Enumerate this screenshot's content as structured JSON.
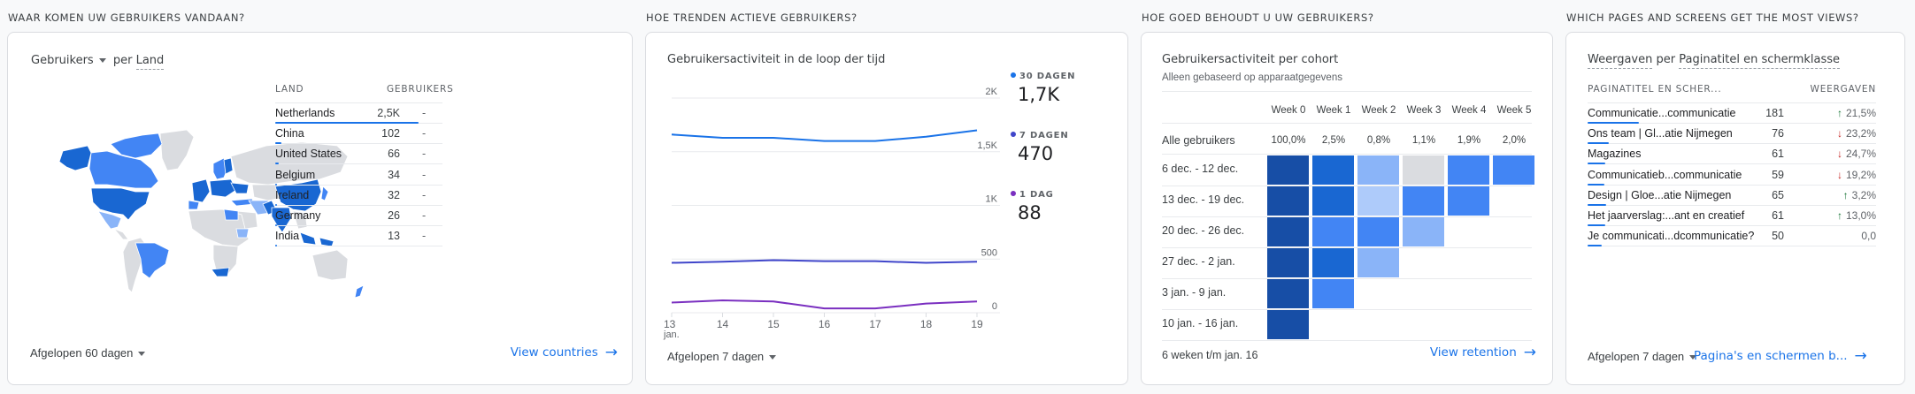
{
  "sections": [
    {
      "title": "WAAR KOMEN UW GEBRUIKERS VANDAAN?"
    },
    {
      "title": "HOE TRENDEN ACTIEVE GEBRUIKERS?"
    },
    {
      "title": "HOE GOED BEHOUDT U UW GEBRUIKERS?"
    },
    {
      "title": "WHICH PAGES AND SCREENS GET THE MOST VIEWS?"
    }
  ],
  "countries": {
    "metric_select": "Gebruikers",
    "dimension_prefix": "per",
    "dimension": "Land",
    "col_country": "LAND",
    "col_users": "GEBRUIKERS",
    "rows": [
      {
        "name": "Netherlands",
        "value": "2,5K",
        "change": "-",
        "share": 1.0
      },
      {
        "name": "China",
        "value": "102",
        "change": "-",
        "share": 0.041
      },
      {
        "name": "United States",
        "value": "66",
        "change": "-",
        "share": 0.026
      },
      {
        "name": "Belgium",
        "value": "34",
        "change": "-",
        "share": 0.014
      },
      {
        "name": "Ireland",
        "value": "32",
        "change": "-",
        "share": 0.013
      },
      {
        "name": "Germany",
        "value": "26",
        "change": "-",
        "share": 0.01
      },
      {
        "name": "India",
        "value": "13",
        "change": "-",
        "share": 0.005
      }
    ],
    "period": "Afgelopen 60 dagen",
    "link": "View countries",
    "map_colors": {
      "dark": "#1967d2",
      "mid": "#4285f4",
      "light": "#8ab4f8",
      "none": "#dadce0"
    }
  },
  "trend": {
    "title": "Gebruikersactiviteit in de loop der tijd",
    "period": "Afgelopen 7 dagen",
    "legend": [
      {
        "label": "30 DAGEN",
        "value": "1,7K",
        "color": "#1a73e8"
      },
      {
        "label": "7 DAGEN",
        "value": "470",
        "color": "#4046ca"
      },
      {
        "label": "1 DAG",
        "value": "88",
        "color": "#7a2fc0"
      }
    ]
  },
  "chart_data": {
    "type": "line",
    "title": "Gebruikersactiviteit in de loop der tijd",
    "x": [
      "13",
      "14",
      "15",
      "16",
      "17",
      "18",
      "19"
    ],
    "x_sublabel": "jan.",
    "y_ticks": [
      "0",
      "500",
      "1K",
      "1,5K",
      "2K"
    ],
    "y_tick_values": [
      0,
      500,
      1000,
      1500,
      2000
    ],
    "ylim": [
      0,
      2000
    ],
    "grid": true,
    "series": [
      {
        "name": "30 DAGEN",
        "color": "#1a73e8",
        "values": [
          1660,
          1630,
          1630,
          1600,
          1600,
          1640,
          1700
        ]
      },
      {
        "name": "7 DAGEN",
        "color": "#4046ca",
        "values": [
          465,
          475,
          490,
          480,
          480,
          465,
          475
        ]
      },
      {
        "name": "1 DAG",
        "color": "#7a2fc0",
        "values": [
          95,
          115,
          105,
          40,
          40,
          85,
          105
        ]
      }
    ]
  },
  "cohort": {
    "title": "Gebruikersactiviteit per cohort",
    "subtitle": "Alleen gebaseerd op apparaatgegevens",
    "weeks": [
      "Week 0",
      "Week 1",
      "Week 2",
      "Week 3",
      "Week 4",
      "Week 5"
    ],
    "all_label": "Alle gebruikers",
    "all_values": [
      "100,0%",
      "2,5%",
      "0,8%",
      "1,1%",
      "1,9%",
      "2,0%"
    ],
    "rows": [
      {
        "label": "6 dec. - 12 dec.",
        "levels": [
          4,
          3,
          1,
          0,
          2,
          2
        ]
      },
      {
        "label": "13 dec. - 19 dec.",
        "levels": [
          4,
          3,
          0.5,
          2,
          2
        ]
      },
      {
        "label": "20 dec. - 26 dec.",
        "levels": [
          4,
          2,
          2,
          1
        ]
      },
      {
        "label": "27 dec. - 2 jan.",
        "levels": [
          4,
          3,
          1
        ]
      },
      {
        "label": "3 jan. - 9 jan.",
        "levels": [
          4,
          2
        ]
      },
      {
        "label": "10 jan. - 16 jan.",
        "levels": [
          4
        ]
      }
    ],
    "level_colors": {
      "0": "#dadce0",
      "0.5": "#aecbfa",
      "1": "#8ab4f8",
      "2": "#4285f4",
      "3": "#1967d2",
      "4": "#174ea6"
    },
    "footer": "6 weken t/m jan. 16",
    "link": "View retention"
  },
  "pages": {
    "title_metric": "Weergaven",
    "title_mid": "per",
    "title_dimension": "Paginatitel en schermklasse",
    "col_page": "PAGINATITEL EN SCHER...",
    "col_views": "WEERGAVEN",
    "rows": [
      {
        "name": "Communicatie...communicatie",
        "value": "181",
        "change": "21,5%",
        "dir": "up",
        "share": 1.0
      },
      {
        "name": "Ons team | Gl...atie Nijmegen",
        "value": "76",
        "change": "23,2%",
        "dir": "down",
        "share": 0.42
      },
      {
        "name": "Magazines",
        "value": "61",
        "change": "24,7%",
        "dir": "down",
        "share": 0.34
      },
      {
        "name": "Communicatieb...communicatie",
        "value": "59",
        "change": "19,2%",
        "dir": "down",
        "share": 0.33
      },
      {
        "name": "Design | Gloe...atie Nijmegen",
        "value": "65",
        "change": "3,2%",
        "dir": "up",
        "share": 0.36
      },
      {
        "name": "Het jaarverslag:...ant en creatief",
        "value": "61",
        "change": "13,0%",
        "dir": "up",
        "share": 0.34
      },
      {
        "name": "Je communicati...dcommunicatie?",
        "value": "50",
        "change": "0,0",
        "dir": "none",
        "share": 0.28
      }
    ],
    "period": "Afgelopen 7 dagen",
    "link": "Pagina's en schermen b..."
  }
}
